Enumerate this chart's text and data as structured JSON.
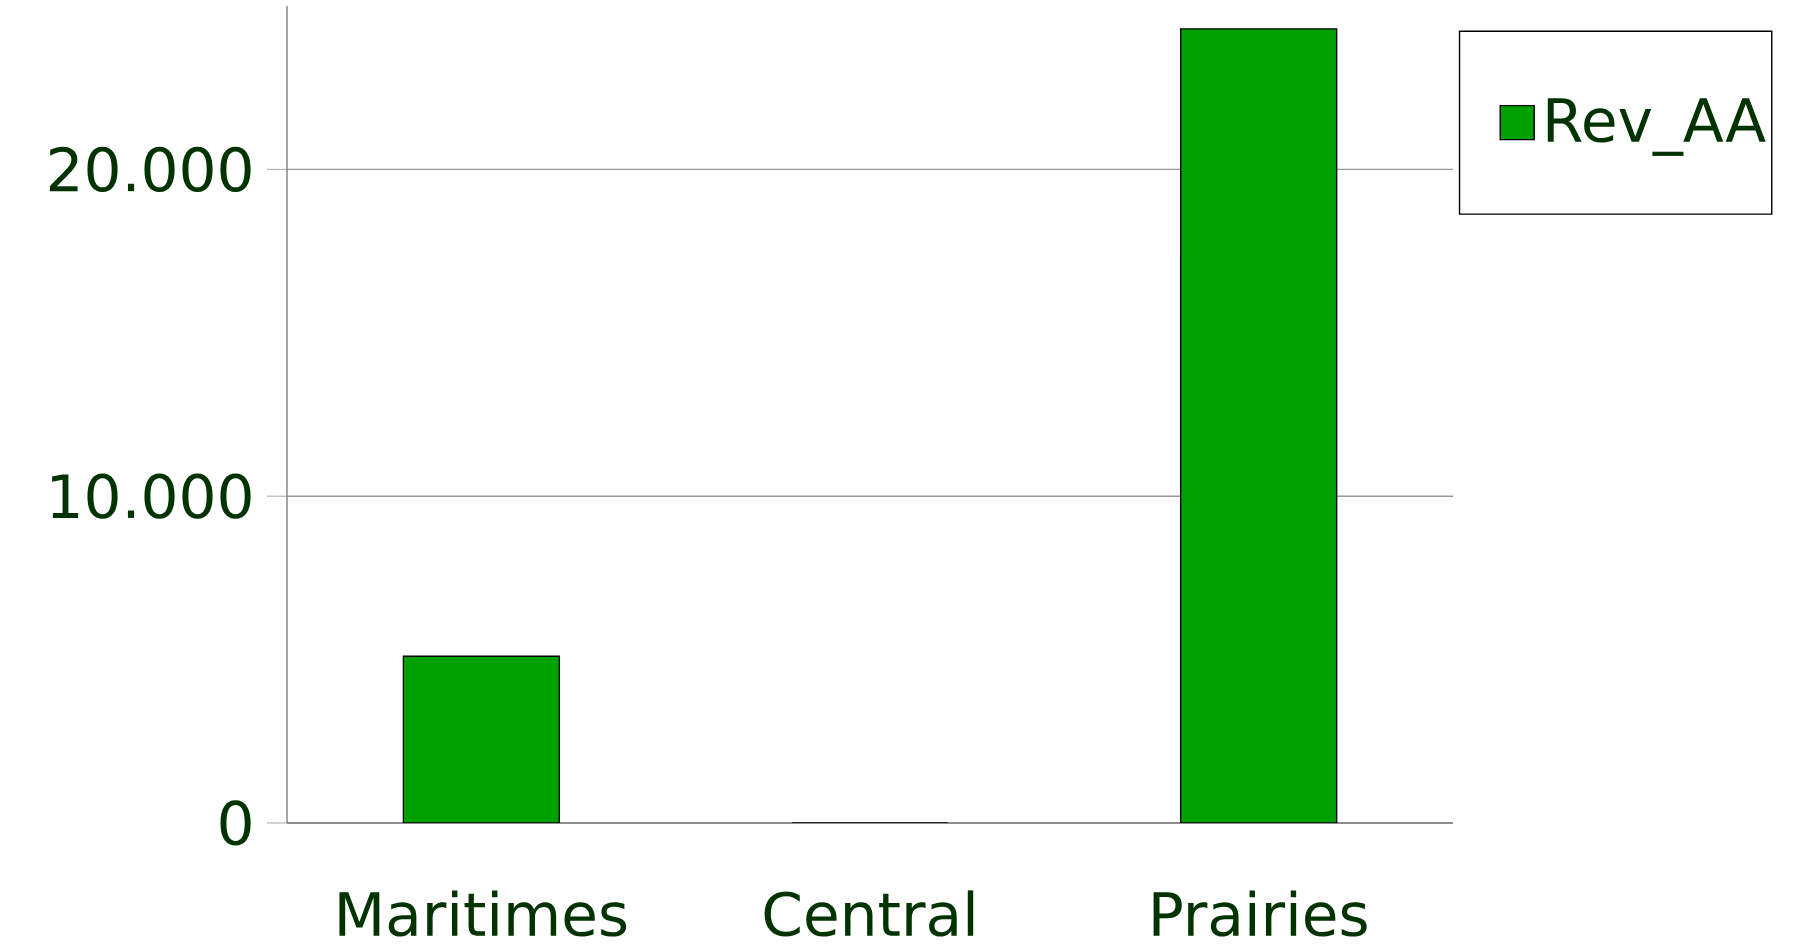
{
  "chart_data": {
    "type": "bar",
    "categories": [
      "Maritimes",
      "Central",
      "Prairies"
    ],
    "series": [
      {
        "name": "Rev_AA",
        "color": "#00a000",
        "values": [
          5100,
          0,
          24300
        ]
      }
    ],
    "ylim": [
      0,
      25000
    ],
    "yticks": [
      0,
      {
        "value": 10000,
        "label": "10.000"
      },
      {
        "value": 20000,
        "label": "20.000"
      }
    ],
    "grid": "y",
    "legend": "top right"
  }
}
